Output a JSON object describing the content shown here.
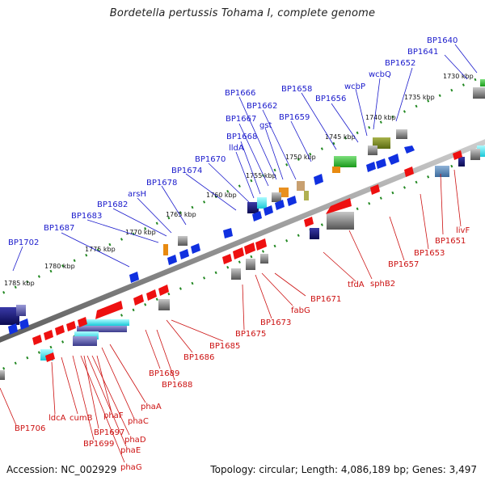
{
  "title": "Bordetella pertussis Tohama I, complete genome",
  "footer": {
    "accession": "Accession: NC_002929",
    "summary": "Topology: circular; Length: 4,086,189 bp; Genes: 3,497"
  },
  "colors": {
    "forward_label": "#1a1acc",
    "reverse_label": "#cc1111",
    "tick": "#228822",
    "backbone": "#8a8a8a"
  },
  "ticks": [
    "1730 kbp",
    "1735 kbp",
    "1740 kbp",
    "1745 kbp",
    "1750 kbp",
    "1755 kbp",
    "1760 kbp",
    "1765 kbp",
    "1770 kbp",
    "1775 kbp",
    "1780 kbp",
    "1785 kbp"
  ],
  "forward_labels": [
    "BP1640",
    "BP1641",
    "BP1652",
    "wcbQ",
    "wcbP",
    "BP1656",
    "BP1658",
    "BP1659",
    "BP1662",
    "gst",
    "BP1666",
    "BP1667",
    "BP1668",
    "lldA",
    "BP1670",
    "BP1674",
    "BP1678",
    "arsH",
    "BP1682",
    "BP1683",
    "BP1687",
    "BP1702"
  ],
  "reverse_labels": [
    "livF",
    "BP1651",
    "BP1653",
    "BP1657",
    "sphB2",
    "tfdA",
    "BP1671",
    "fabG",
    "BP1673",
    "BP1675",
    "BP1685",
    "BP1686",
    "BP1688",
    "BP1689",
    "phaA",
    "phaC",
    "phaD",
    "phaE",
    "phaG",
    "phaF",
    "BP1697",
    "BP1699",
    "cumB",
    "ldcA",
    "BP1706"
  ]
}
